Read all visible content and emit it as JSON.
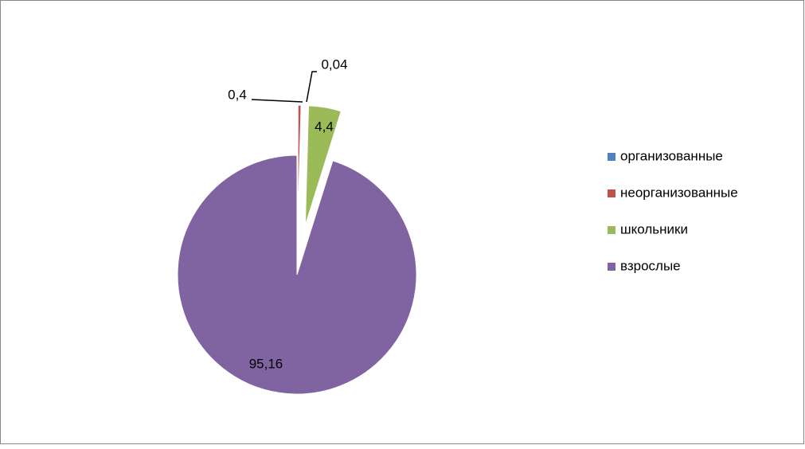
{
  "chart_data": {
    "type": "pie",
    "categories": [
      "организованные",
      "неорганизованные",
      "школьники",
      "взрослые"
    ],
    "values": [
      0.04,
      0.4,
      4.4,
      95.16
    ],
    "value_labels": [
      "0,04",
      "0,4",
      "4,4",
      "95,16"
    ],
    "colors": [
      "#4f81bd",
      "#c0504d",
      "#9bbb59",
      "#8064a2"
    ],
    "legend": "right"
  }
}
